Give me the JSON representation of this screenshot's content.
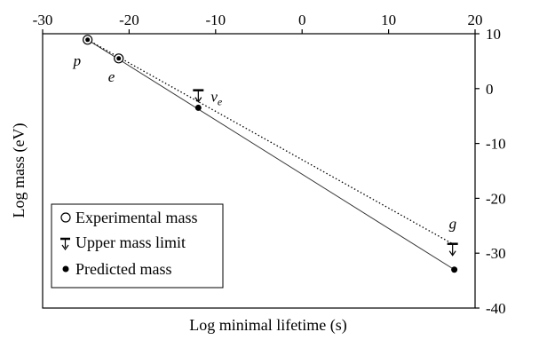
{
  "chart_data": {
    "type": "scatter",
    "title": "",
    "xlabel": "Log minimal lifetime (s)",
    "ylabel": "Log mass (eV)",
    "xlim": [
      -30,
      20
    ],
    "ylim": [
      -40,
      10
    ],
    "x_ticks": [
      -30,
      -20,
      -10,
      0,
      10,
      20
    ],
    "y_ticks": [
      10,
      0,
      -10,
      -20,
      -30,
      -40
    ],
    "x_tick_labels": [
      "-30",
      "-20",
      "-10",
      "0",
      "10",
      "20"
    ],
    "y_tick_labels": [
      "10",
      "0",
      "-10",
      "-20",
      "-30",
      "-40"
    ],
    "grid": false,
    "legend_position": "bottom-left",
    "points": [
      {
        "label": "p",
        "x": -24.8,
        "y": 8.9,
        "kind": "experimental"
      },
      {
        "label": "e",
        "x": -21.2,
        "y": 5.5,
        "kind": "experimental"
      },
      {
        "label": "",
        "x": -12.0,
        "y": -3.5,
        "kind": "predicted"
      },
      {
        "label": "",
        "x": 17.6,
        "y": -33.0,
        "kind": "predicted"
      }
    ],
    "upper_limits": [
      {
        "label": "ve",
        "x": -12.0,
        "y": -0.3
      },
      {
        "label": "g",
        "x": 17.4,
        "y": -28.3
      }
    ],
    "lines": [
      {
        "style": "solid",
        "x": [
          -24.8,
          17.6
        ],
        "y": [
          8.9,
          -33.0
        ]
      },
      {
        "style": "dotted",
        "x": [
          -24.8,
          17.4
        ],
        "y": [
          8.9,
          -28.3
        ]
      }
    ],
    "legend": [
      {
        "symbol": "open-circle",
        "label": "Experimental mass"
      },
      {
        "symbol": "upper-limit",
        "label": "Upper mass limit"
      },
      {
        "symbol": "filled-circle",
        "label": "Predicted mass"
      }
    ]
  }
}
